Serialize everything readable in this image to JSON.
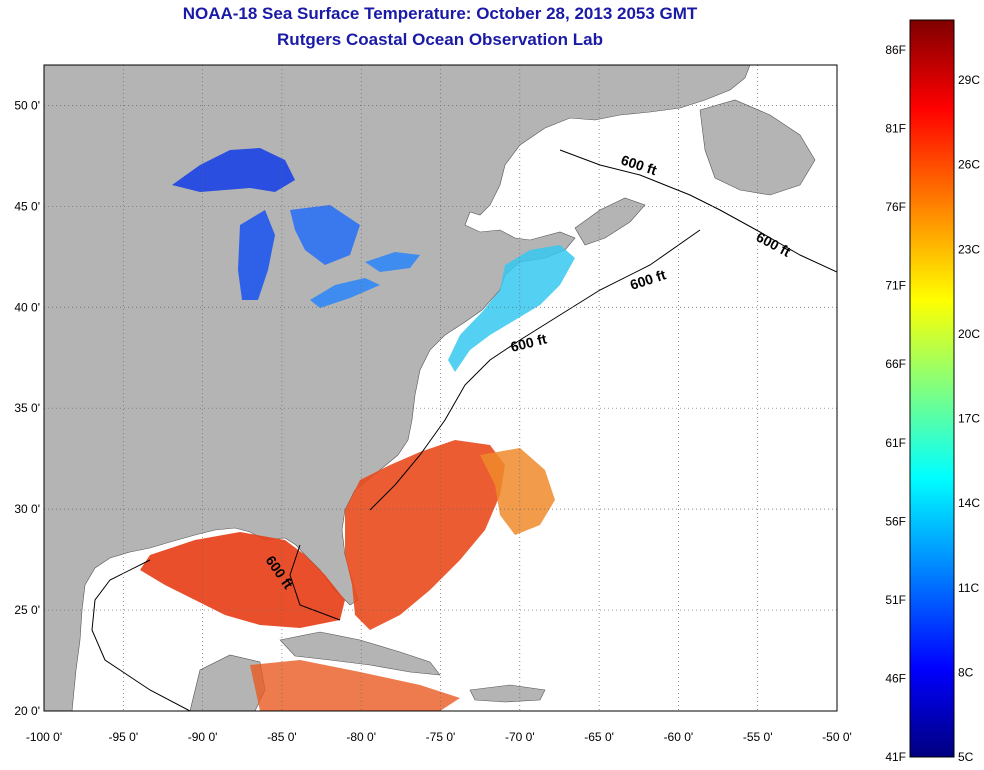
{
  "title": "NOAA-18 Sea Surface Temperature:  October 28, 2013 2053 GMT",
  "subtitle": "Rutgers Coastal Ocean Observation Lab",
  "colors": {
    "land": "#b4b4b4",
    "water": "#ffffff",
    "title": "#1a1aa6",
    "warm": "#e8401a",
    "cold": "#2a4ee0"
  },
  "map": {
    "lon_range": [
      -100,
      -50
    ],
    "lat_range": [
      20,
      52
    ],
    "lon_ticks": [
      "-100 0'",
      "-95 0'",
      "-90 0'",
      "-85 0'",
      "-80 0'",
      "-75 0'",
      "-70 0'",
      "-65 0'",
      "-60 0'",
      "-55 0'",
      "-50 0'"
    ],
    "lat_ticks": [
      "20 0'",
      "25 0'",
      "30 0'",
      "35 0'",
      "40 0'",
      "45 0'",
      "50 0'"
    ],
    "contour_labels": [
      "600 ft",
      "600 ft",
      "600 ft",
      "600 ft",
      "600 ft"
    ],
    "grid": "dotted"
  },
  "colorbar": {
    "fahrenheit": [
      "86F",
      "81F",
      "76F",
      "71F",
      "66F",
      "61F",
      "56F",
      "51F",
      "46F",
      "41F"
    ],
    "celsius": [
      "29C",
      "26C",
      "23C",
      "20C",
      "17C",
      "14C",
      "11C",
      "8C",
      "5C"
    ],
    "stops": [
      "#7f0000",
      "#ff0000",
      "#ff8000",
      "#ffff00",
      "#80ff80",
      "#00ffff",
      "#0080ff",
      "#0000ff",
      "#00007f"
    ]
  }
}
